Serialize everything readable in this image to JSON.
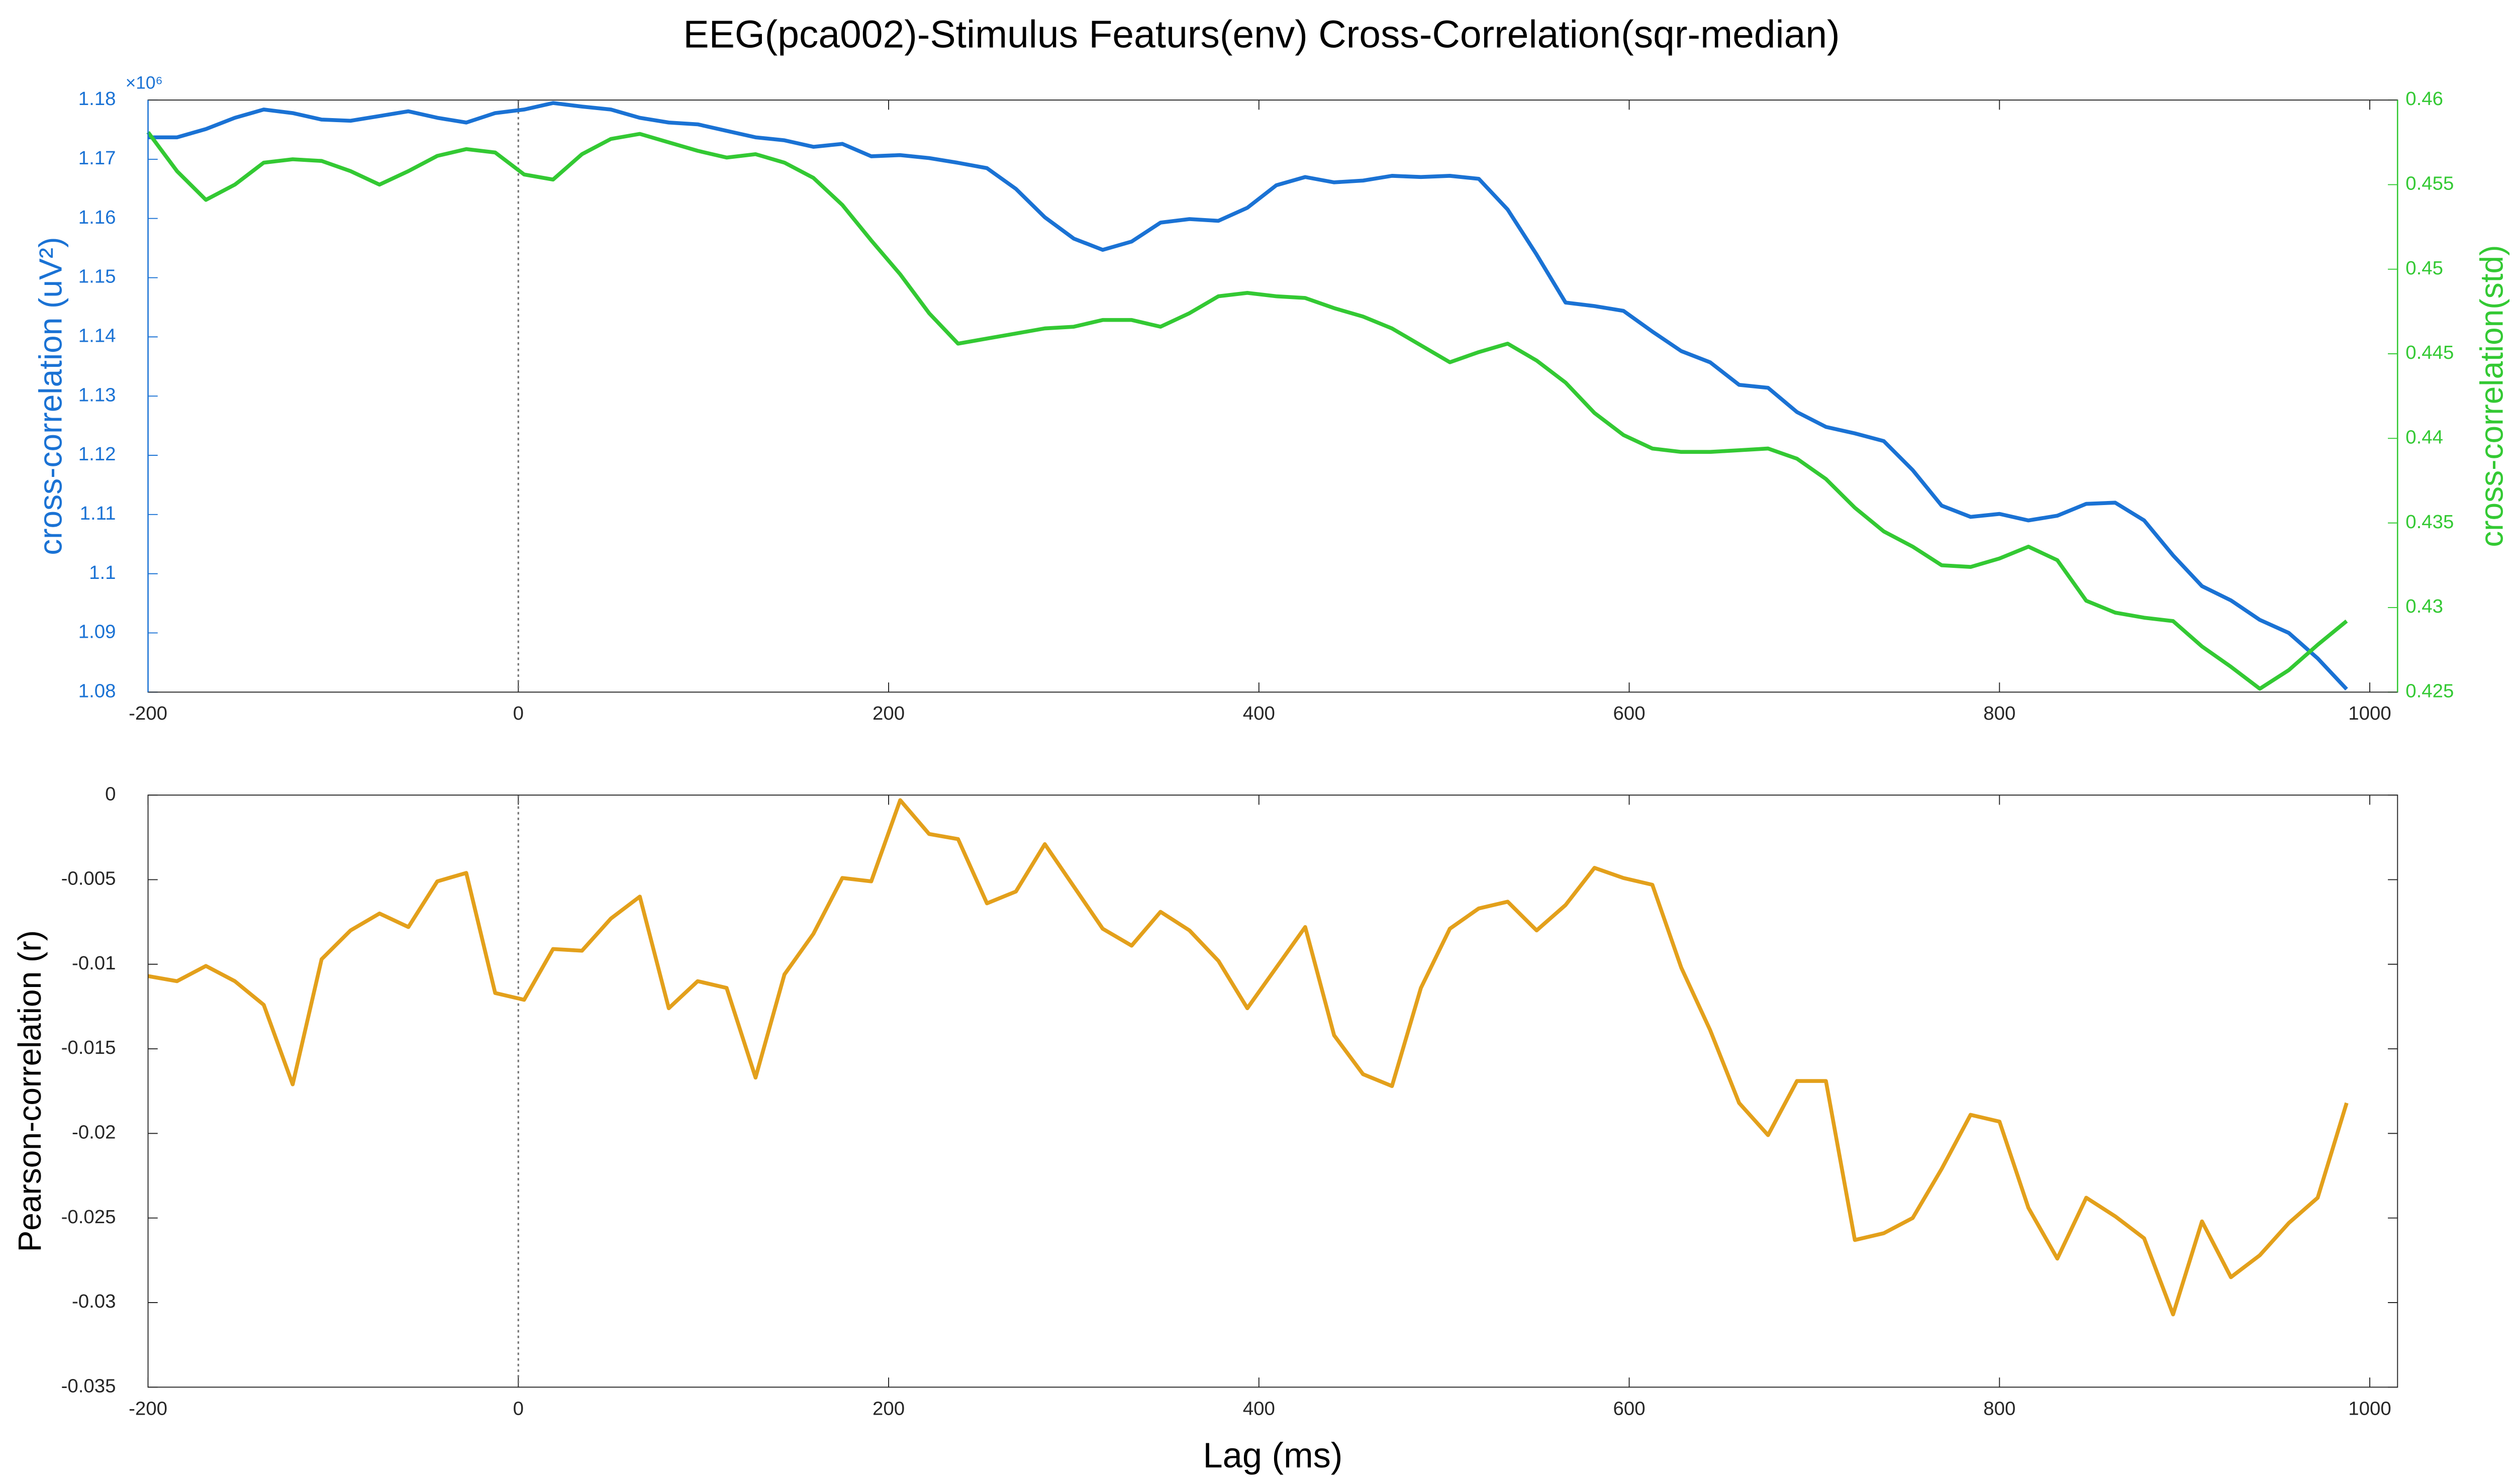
{
  "chart_data": [
    {
      "type": "line",
      "title": "EEG(pca002)-Stimulus Featurs(env) Cross-Correlation(sqr-median)",
      "ylabel": "cross-correlation (uV²)",
      "y2label": "cross-correlation(std)",
      "y_exponent_label": "×10⁶",
      "x": [
        -200,
        -184.375,
        -168.75,
        -153.125,
        -137.5,
        -121.875,
        -106.25,
        -90.625,
        -75,
        -59.375,
        -43.75,
        -28.125,
        -12.5,
        3.125,
        18.75,
        34.375,
        50,
        65.625,
        81.25,
        96.875,
        112.5,
        128.125,
        143.75,
        159.375,
        175,
        190.625,
        206.25,
        221.875,
        237.5,
        253.125,
        268.75,
        284.375,
        300,
        315.625,
        331.25,
        346.875,
        362.5,
        378.125,
        393.75,
        409.375,
        425,
        440.625,
        456.25,
        471.875,
        487.5,
        503.125,
        518.75,
        534.375,
        550,
        565.625,
        581.25,
        596.875,
        612.5,
        628.125,
        643.75,
        659.375,
        675,
        690.625,
        706.25,
        721.875,
        737.5,
        753.125,
        768.75,
        784.375,
        800,
        815.625,
        831.25,
        846.875,
        862.5,
        878.125,
        893.75,
        909.375,
        925,
        940.625,
        956.25,
        971.875,
        987.5
      ],
      "series": [
        {
          "color": "#1a72d4",
          "values": [
            1173700,
            1173700,
            1175100,
            1177000,
            1178400,
            1177800,
            1176700,
            1176500,
            1177300,
            1178100,
            1177000,
            1176200,
            1177800,
            1178400,
            1179500,
            1178900,
            1178400,
            1177000,
            1176200,
            1175900,
            1174800,
            1173700,
            1173200,
            1172100,
            1172600,
            1170500,
            1170700,
            1170200,
            1169400,
            1168500,
            1165000,
            1160200,
            1156600,
            1154700,
            1156100,
            1159300,
            1159900,
            1159600,
            1161800,
            1165600,
            1167000,
            1166100,
            1166400,
            1167200,
            1167000,
            1167200,
            1166700,
            1161500,
            1153900,
            1145800,
            1145200,
            1144400,
            1140900,
            1137600,
            1135700,
            1131900,
            1131400,
            1127300,
            1124800,
            1123700,
            1122400,
            1117500,
            1111500,
            1109600,
            1110100,
            1109000,
            1109800,
            1111800,
            1112000,
            1109000,
            1103100,
            1097900,
            1095500,
            1092200,
            1090000,
            1085700,
            1080500
          ]
        },
        {
          "color": "#33c933",
          "axis": "y2",
          "values": [
            0.4581,
            0.4558,
            0.4541,
            0.455,
            0.4563,
            0.4565,
            0.4564,
            0.4558,
            0.455,
            0.4558,
            0.4567,
            0.4571,
            0.4569,
            0.4556,
            0.4553,
            0.4568,
            0.4577,
            0.458,
            0.4575,
            0.457,
            0.4566,
            0.4568,
            0.4563,
            0.4554,
            0.4538,
            0.4517,
            0.4497,
            0.4474,
            0.4456,
            0.4459,
            0.4462,
            0.4465,
            0.4466,
            0.447,
            0.447,
            0.4466,
            0.4474,
            0.4484,
            0.4486,
            0.4484,
            0.4483,
            0.4477,
            0.4472,
            0.4465,
            0.4455,
            0.4445,
            0.4451,
            0.4456,
            0.4446,
            0.4433,
            0.4415,
            0.4402,
            0.4394,
            0.4392,
            0.4392,
            0.4393,
            0.4394,
            0.4388,
            0.4376,
            0.4359,
            0.4345,
            0.4336,
            0.4325,
            0.4324,
            0.4329,
            0.4336,
            0.4328,
            0.4304,
            0.4297,
            0.4294,
            0.4292,
            0.4277,
            0.4265,
            0.4252,
            0.4263,
            0.4278,
            0.4292
          ]
        }
      ],
      "xlim": [
        -200,
        1015
      ],
      "xticks": [
        -200,
        0,
        200,
        400,
        600,
        800,
        1000
      ],
      "ylim": [
        1080000,
        1180000
      ],
      "yticks": [
        {
          "value": 1080000,
          "label": "1.08"
        },
        {
          "value": 1090000,
          "label": "1.09"
        },
        {
          "value": 1100000,
          "label": "1.1"
        },
        {
          "value": 1110000,
          "label": "1.11"
        },
        {
          "value": 1120000,
          "label": "1.12"
        },
        {
          "value": 1130000,
          "label": "1.13"
        },
        {
          "value": 1140000,
          "label": "1.14"
        },
        {
          "value": 1150000,
          "label": "1.15"
        },
        {
          "value": 1160000,
          "label": "1.16"
        },
        {
          "value": 1170000,
          "label": "1.17"
        },
        {
          "value": 1180000,
          "label": "1.18"
        }
      ],
      "y2lim": [
        0.425,
        0.46
      ],
      "y2ticks": [
        0.425,
        0.43,
        0.435,
        0.44,
        0.445,
        0.45,
        0.455,
        0.46
      ],
      "reference_line_x": 0,
      "grid": false
    },
    {
      "type": "line",
      "ylabel": "Pearson-correlation (r)",
      "xlabel": "Lag (ms)",
      "x": [
        -200,
        -184.375,
        -168.75,
        -153.125,
        -137.5,
        -121.875,
        -106.25,
        -90.625,
        -75,
        -59.375,
        -43.75,
        -28.125,
        -12.5,
        3.125,
        18.75,
        34.375,
        50,
        65.625,
        81.25,
        96.875,
        112.5,
        128.125,
        143.75,
        159.375,
        175,
        190.625,
        206.25,
        221.875,
        237.5,
        253.125,
        268.75,
        284.375,
        300,
        315.625,
        331.25,
        346.875,
        362.5,
        378.125,
        393.75,
        409.375,
        425,
        440.625,
        456.25,
        471.875,
        487.5,
        503.125,
        518.75,
        534.375,
        550,
        565.625,
        581.25,
        596.875,
        612.5,
        628.125,
        643.75,
        659.375,
        675,
        690.625,
        706.25,
        721.875,
        737.5,
        753.125,
        768.75,
        784.375,
        800,
        815.625,
        831.25,
        846.875,
        862.5,
        878.125,
        893.75,
        909.375,
        925,
        940.625,
        956.25,
        971.875,
        987.5
      ],
      "series": [
        {
          "color": "#e3a01b",
          "values": [
            -0.0107,
            -0.011,
            -0.0101,
            -0.011,
            -0.0124,
            -0.0171,
            -0.0097,
            -0.008,
            -0.007,
            -0.0078,
            -0.0051,
            -0.0046,
            -0.0117,
            -0.0121,
            -0.0091,
            -0.0092,
            -0.0073,
            -0.006,
            -0.0126,
            -0.011,
            -0.0114,
            -0.0167,
            -0.0106,
            -0.0082,
            -0.0049,
            -0.0051,
            -0.0003,
            -0.0023,
            -0.0026,
            -0.0064,
            -0.0057,
            -0.0029,
            -0.0054,
            -0.0079,
            -0.0089,
            -0.0069,
            -0.008,
            -0.0098,
            -0.0126,
            -0.0102,
            -0.0078,
            -0.0142,
            -0.0165,
            -0.0172,
            -0.0114,
            -0.0079,
            -0.0067,
            -0.0063,
            -0.008,
            -0.0065,
            -0.0043,
            -0.0049,
            -0.0053,
            -0.0102,
            -0.0139,
            -0.0182,
            -0.0201,
            -0.0169,
            -0.0169,
            -0.0263,
            -0.0259,
            -0.025,
            -0.0221,
            -0.0189,
            -0.0193,
            -0.0244,
            -0.0274,
            -0.0238,
            -0.0249,
            -0.0262,
            -0.0307,
            -0.0252,
            -0.0285,
            -0.0272,
            -0.0253,
            -0.0238,
            -0.0182
          ]
        }
      ],
      "xlim": [
        -200,
        1015
      ],
      "xticks": [
        -200,
        0,
        200,
        400,
        600,
        800,
        1000
      ],
      "ylim": [
        -0.035,
        0
      ],
      "yticks": [
        -0.035,
        -0.03,
        -0.025,
        -0.02,
        -0.015,
        -0.01,
        -0.005,
        0
      ],
      "reference_line_x": 0,
      "grid": false
    }
  ]
}
